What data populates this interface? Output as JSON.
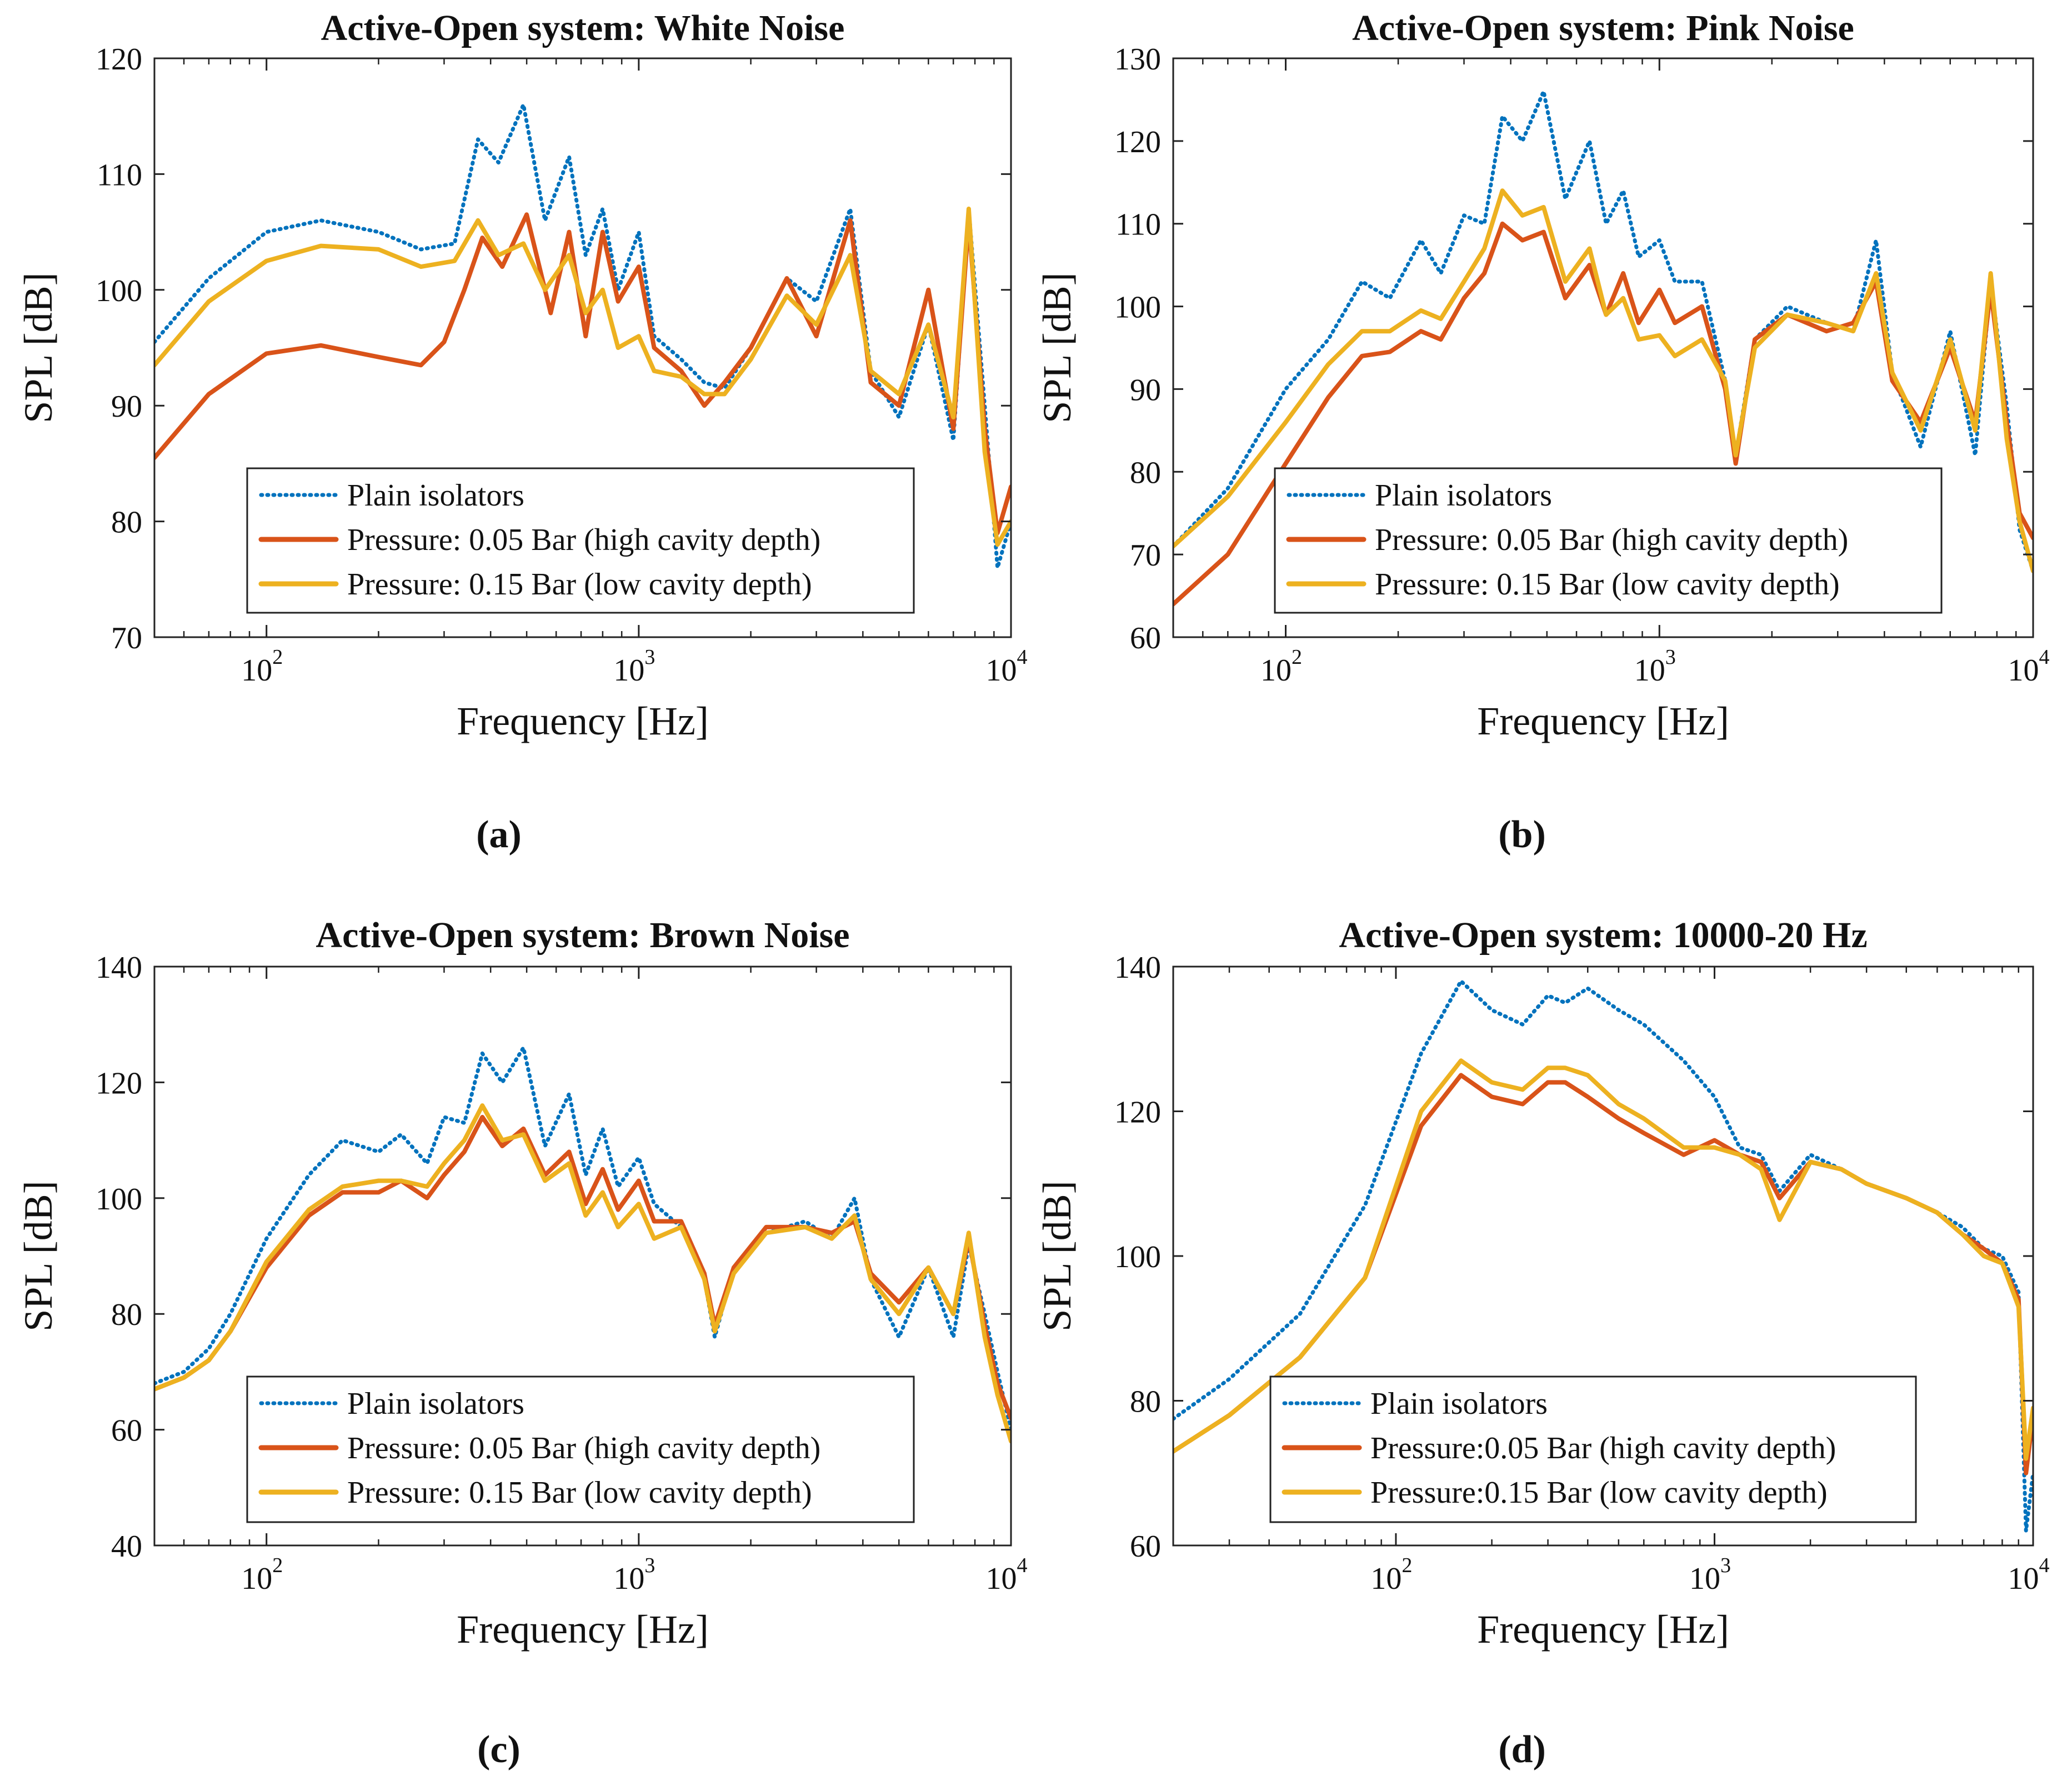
{
  "figure": {
    "panels": [
      {
        "id": "a",
        "caption": "(a)"
      },
      {
        "id": "b",
        "caption": "(b)"
      },
      {
        "id": "c",
        "caption": "(c)"
      },
      {
        "id": "d",
        "caption": "(d)"
      }
    ]
  },
  "chart_data": [
    {
      "type": "line",
      "title": "Active-Open system: White Noise",
      "xlabel": "Frequency [Hz]",
      "ylabel": "SPL [dB]",
      "xscale": "log",
      "xlim": [
        50,
        10000
      ],
      "ylim": [
        70,
        120
      ],
      "yticks": [
        70,
        80,
        90,
        100,
        110,
        120
      ],
      "xticks": [
        100,
        1000,
        10000
      ],
      "xtick_labels": [
        {
          "base": "10",
          "exp": "2"
        },
        {
          "base": "10",
          "exp": "3"
        },
        {
          "base": "10",
          "exp": "4"
        }
      ],
      "legend_position": "lower-center",
      "series": [
        {
          "name": "Plain isolators",
          "color": "#0072BD",
          "style": "dotted",
          "x": [
            50,
            70,
            100,
            140,
            200,
            260,
            320,
            370,
            420,
            490,
            560,
            650,
            720,
            800,
            880,
            1000,
            1100,
            1300,
            1500,
            1700,
            2000,
            2500,
            3000,
            3700,
            4200,
            5000,
            6000,
            7000,
            7700,
            8500,
            9200,
            10000
          ],
          "y": [
            95.5,
            101,
            105,
            106,
            105,
            103.5,
            104,
            113,
            111,
            116,
            106,
            111.5,
            103,
            107,
            100,
            105,
            96,
            94,
            92,
            91.5,
            95,
            101,
            99,
            107,
            93,
            89,
            97,
            87,
            107,
            90,
            76,
            80
          ]
        },
        {
          "name": "Pressure: 0.05 Bar (high cavity depth)",
          "color": "#D95319",
          "style": "solid",
          "x": [
            50,
            70,
            100,
            140,
            200,
            260,
            300,
            340,
            380,
            430,
            500,
            580,
            650,
            720,
            800,
            880,
            1000,
            1100,
            1300,
            1500,
            1700,
            2000,
            2500,
            3000,
            3700,
            4200,
            5000,
            6000,
            7000,
            7700,
            8500,
            9200,
            10000
          ],
          "y": [
            85.5,
            91,
            94.5,
            95.2,
            94.2,
            93.5,
            95.5,
            100,
            104.5,
            102,
            106.5,
            98,
            105,
            96,
            105,
            99,
            102,
            95,
            93,
            90,
            92,
            95,
            101,
            96,
            106,
            92,
            90,
            100,
            88,
            106,
            88,
            79,
            83
          ]
        },
        {
          "name": "Pressure: 0.15 Bar (low cavity depth)",
          "color": "#EDB120",
          "style": "solid",
          "x": [
            50,
            70,
            100,
            140,
            200,
            260,
            320,
            370,
            420,
            490,
            560,
            650,
            720,
            800,
            880,
            1000,
            1100,
            1300,
            1500,
            1700,
            2000,
            2500,
            3000,
            3700,
            4200,
            5000,
            6000,
            7000,
            7700,
            8500,
            9200,
            10000
          ],
          "y": [
            93.5,
            99,
            102.5,
            103.8,
            103.5,
            102,
            102.5,
            106,
            103,
            104,
            100,
            103,
            98,
            100,
            95,
            96,
            93,
            92.5,
            91,
            91,
            94,
            99.5,
            97,
            103,
            93,
            91,
            97,
            89,
            107,
            86,
            78,
            80
          ]
        }
      ]
    },
    {
      "type": "line",
      "title": "Active-Open system: Pink Noise",
      "xlabel": "Frequency [Hz]",
      "ylabel": "SPL [dB]",
      "xscale": "log",
      "xlim": [
        50,
        10000
      ],
      "ylim": [
        60,
        130
      ],
      "yticks": [
        60,
        70,
        80,
        90,
        100,
        110,
        120,
        130
      ],
      "xticks": [
        100,
        1000,
        10000
      ],
      "xtick_labels": [
        {
          "base": "10",
          "exp": "2"
        },
        {
          "base": "10",
          "exp": "3"
        },
        {
          "base": "10",
          "exp": "4"
        }
      ],
      "legend_position": "lower-center",
      "series": [
        {
          "name": "Plain isolators",
          "color": "#0072BD",
          "style": "dotted",
          "x": [
            50,
            70,
            100,
            130,
            160,
            190,
            230,
            260,
            300,
            340,
            380,
            430,
            490,
            560,
            650,
            720,
            800,
            880,
            1000,
            1100,
            1300,
            1500,
            1600,
            1800,
            2200,
            2800,
            3300,
            3800,
            4200,
            5000,
            6000,
            7000,
            7700,
            8500,
            9200,
            10000
          ],
          "y": [
            71,
            78,
            90,
            96,
            103,
            101,
            108,
            104,
            111,
            110,
            123,
            120,
            126,
            113,
            120,
            110,
            114,
            106,
            108,
            103,
            103,
            91,
            82,
            96,
            100,
            98,
            97,
            108,
            92,
            83,
            97,
            82,
            103,
            88,
            73,
            68
          ]
        },
        {
          "name": "Pressure: 0.05 Bar (high cavity depth)",
          "color": "#D95319",
          "style": "solid",
          "x": [
            50,
            70,
            100,
            130,
            160,
            190,
            230,
            260,
            300,
            340,
            380,
            430,
            490,
            560,
            650,
            720,
            800,
            880,
            1000,
            1100,
            1300,
            1500,
            1600,
            1800,
            2200,
            2800,
            3300,
            3800,
            4200,
            5000,
            6000,
            7000,
            7700,
            8500,
            9200,
            10000
          ],
          "y": [
            64,
            70,
            81,
            89,
            94,
            94.5,
            97,
            96,
            101,
            104,
            110,
            108,
            109,
            101,
            105,
            99,
            104,
            98,
            102,
            98,
            100,
            90,
            81,
            96,
            99,
            97,
            98,
            103,
            91,
            86,
            95,
            86,
            102,
            86,
            75,
            72
          ]
        },
        {
          "name": "Pressure: 0.15 Bar (low cavity depth)",
          "color": "#EDB120",
          "style": "solid",
          "x": [
            50,
            70,
            100,
            130,
            160,
            190,
            230,
            260,
            300,
            340,
            380,
            430,
            490,
            560,
            650,
            720,
            800,
            880,
            1000,
            1100,
            1300,
            1500,
            1600,
            1800,
            2200,
            2800,
            3300,
            3800,
            4200,
            5000,
            6000,
            7000,
            7700,
            8500,
            9200,
            10000
          ],
          "y": [
            71,
            77,
            86,
            93,
            97,
            97,
            99.5,
            98.5,
            103,
            107,
            114,
            111,
            112,
            103,
            107,
            99,
            101,
            96,
            96.5,
            94,
            96,
            91,
            82,
            95,
            99,
            98,
            97,
            104,
            92,
            85,
            96,
            85,
            104,
            84,
            74,
            68
          ]
        }
      ]
    },
    {
      "type": "line",
      "title": "Active-Open system: Brown Noise",
      "xlabel": "Frequency [Hz]",
      "ylabel": "SPL [dB]",
      "xscale": "log",
      "xlim": [
        50,
        10000
      ],
      "ylim": [
        40,
        140
      ],
      "yticks": [
        40,
        60,
        80,
        100,
        120,
        140
      ],
      "xticks": [
        100,
        1000,
        10000
      ],
      "xtick_labels": [
        {
          "base": "10",
          "exp": "2"
        },
        {
          "base": "10",
          "exp": "3"
        },
        {
          "base": "10",
          "exp": "4"
        }
      ],
      "legend_position": "lower-center",
      "series": [
        {
          "name": "Plain isolators",
          "color": "#0072BD",
          "style": "dotted",
          "x": [
            50,
            60,
            70,
            80,
            100,
            130,
            160,
            200,
            230,
            270,
            300,
            340,
            380,
            430,
            490,
            560,
            650,
            720,
            800,
            880,
            1000,
            1100,
            1300,
            1500,
            1600,
            1800,
            2200,
            2800,
            3300,
            3800,
            4200,
            5000,
            6000,
            7000,
            7700,
            8500,
            9200,
            10000
          ],
          "y": [
            68,
            70,
            74,
            80,
            93,
            104,
            110,
            108,
            111,
            106,
            114,
            113,
            125,
            120,
            126,
            109,
            118,
            104,
            112,
            102,
            107,
            99,
            95,
            86,
            76,
            88,
            94,
            96,
            93,
            100,
            86,
            76,
            88,
            76,
            92,
            80,
            70,
            60
          ]
        },
        {
          "name": "Pressure: 0.05 Bar (high cavity depth)",
          "color": "#D95319",
          "style": "solid",
          "x": [
            50,
            60,
            70,
            80,
            100,
            130,
            160,
            200,
            230,
            270,
            300,
            340,
            380,
            430,
            490,
            560,
            650,
            720,
            800,
            880,
            1000,
            1100,
            1300,
            1500,
            1600,
            1800,
            2200,
            2800,
            3300,
            3800,
            4200,
            5000,
            6000,
            7000,
            7700,
            8500,
            9200,
            10000
          ],
          "y": [
            67,
            69,
            72,
            77,
            88,
            97,
            101,
            101,
            103,
            100,
            104,
            108,
            114,
            109,
            112,
            104,
            108,
            99,
            105,
            98,
            103,
            96,
            96,
            87,
            78,
            88,
            95,
            95,
            94,
            96,
            87,
            82,
            88,
            80,
            93,
            78,
            68,
            62
          ]
        },
        {
          "name": "Pressure: 0.15 Bar (low cavity depth)",
          "color": "#EDB120",
          "style": "solid",
          "x": [
            50,
            60,
            70,
            80,
            100,
            130,
            160,
            200,
            230,
            270,
            300,
            340,
            380,
            430,
            490,
            560,
            650,
            720,
            800,
            880,
            1000,
            1100,
            1300,
            1500,
            1600,
            1800,
            2200,
            2800,
            3300,
            3800,
            4200,
            5000,
            6000,
            7000,
            7700,
            8500,
            9200,
            10000
          ],
          "y": [
            67,
            69,
            72,
            77,
            89,
            98,
            102,
            103,
            103,
            102,
            106,
            110,
            116,
            110,
            111,
            103,
            106,
            97,
            101,
            95,
            99,
            93,
            95,
            86,
            77,
            87,
            94,
            95,
            93,
            97,
            86,
            80,
            88,
            80,
            94,
            76,
            66,
            58
          ]
        }
      ]
    },
    {
      "type": "line",
      "title": "Active-Open system: 10000-20 Hz",
      "xlabel": "Frequency [Hz]",
      "ylabel": "SPL [dB]",
      "xscale": "log",
      "xlim": [
        20,
        10000
      ],
      "ylim": [
        60,
        140
      ],
      "yticks": [
        60,
        80,
        100,
        120,
        140
      ],
      "xticks": [
        100,
        1000,
        10000
      ],
      "xtick_labels": [
        {
          "base": "10",
          "exp": "2"
        },
        {
          "base": "10",
          "exp": "3"
        },
        {
          "base": "10",
          "exp": "4"
        }
      ],
      "legend_position": "lower-center",
      "series": [
        {
          "name": "Plain isolators",
          "color": "#0072BD",
          "style": "dotted",
          "x": [
            20,
            30,
            50,
            80,
            120,
            160,
            200,
            250,
            300,
            340,
            400,
            500,
            600,
            800,
            1000,
            1200,
            1400,
            1600,
            2000,
            2500,
            3000,
            4000,
            5000,
            6000,
            7000,
            8000,
            9000,
            9500,
            10000
          ],
          "y": [
            77.5,
            83,
            92,
            107,
            128,
            138,
            134,
            132,
            136,
            135,
            137,
            134,
            132,
            127,
            122,
            115,
            114,
            109,
            114,
            112,
            110,
            108,
            106,
            104,
            101,
            100,
            95,
            62,
            70
          ]
        },
        {
          "name": "Pressure:0.05 Bar (high cavity depth)",
          "color": "#D95319",
          "style": "solid",
          "x": [
            20,
            30,
            50,
            80,
            120,
            160,
            200,
            250,
            300,
            340,
            400,
            500,
            600,
            800,
            1000,
            1200,
            1400,
            1600,
            2000,
            2500,
            3000,
            4000,
            5000,
            6000,
            7000,
            8000,
            9000,
            9500,
            10000
          ],
          "y": [
            73,
            78,
            86,
            97,
            118,
            125,
            122,
            121,
            124,
            124,
            122,
            119,
            117,
            114,
            116,
            114,
            113,
            108,
            113,
            112,
            110,
            108,
            106,
            103,
            101,
            99,
            94,
            70,
            78
          ]
        },
        {
          "name": "Pressure:0.15 Bar (low cavity depth)",
          "color": "#EDB120",
          "style": "solid",
          "x": [
            20,
            30,
            50,
            80,
            120,
            160,
            200,
            250,
            300,
            340,
            400,
            500,
            600,
            800,
            1000,
            1200,
            1400,
            1600,
            2000,
            2500,
            3000,
            4000,
            5000,
            6000,
            7000,
            8000,
            9000,
            9500,
            10000
          ],
          "y": [
            73,
            78,
            86,
            97,
            120,
            127,
            124,
            123,
            126,
            126,
            125,
            121,
            119,
            115,
            115,
            114,
            112,
            105,
            113,
            112,
            110,
            108,
            106,
            103,
            100,
            99,
            93,
            72,
            79
          ]
        }
      ]
    }
  ]
}
